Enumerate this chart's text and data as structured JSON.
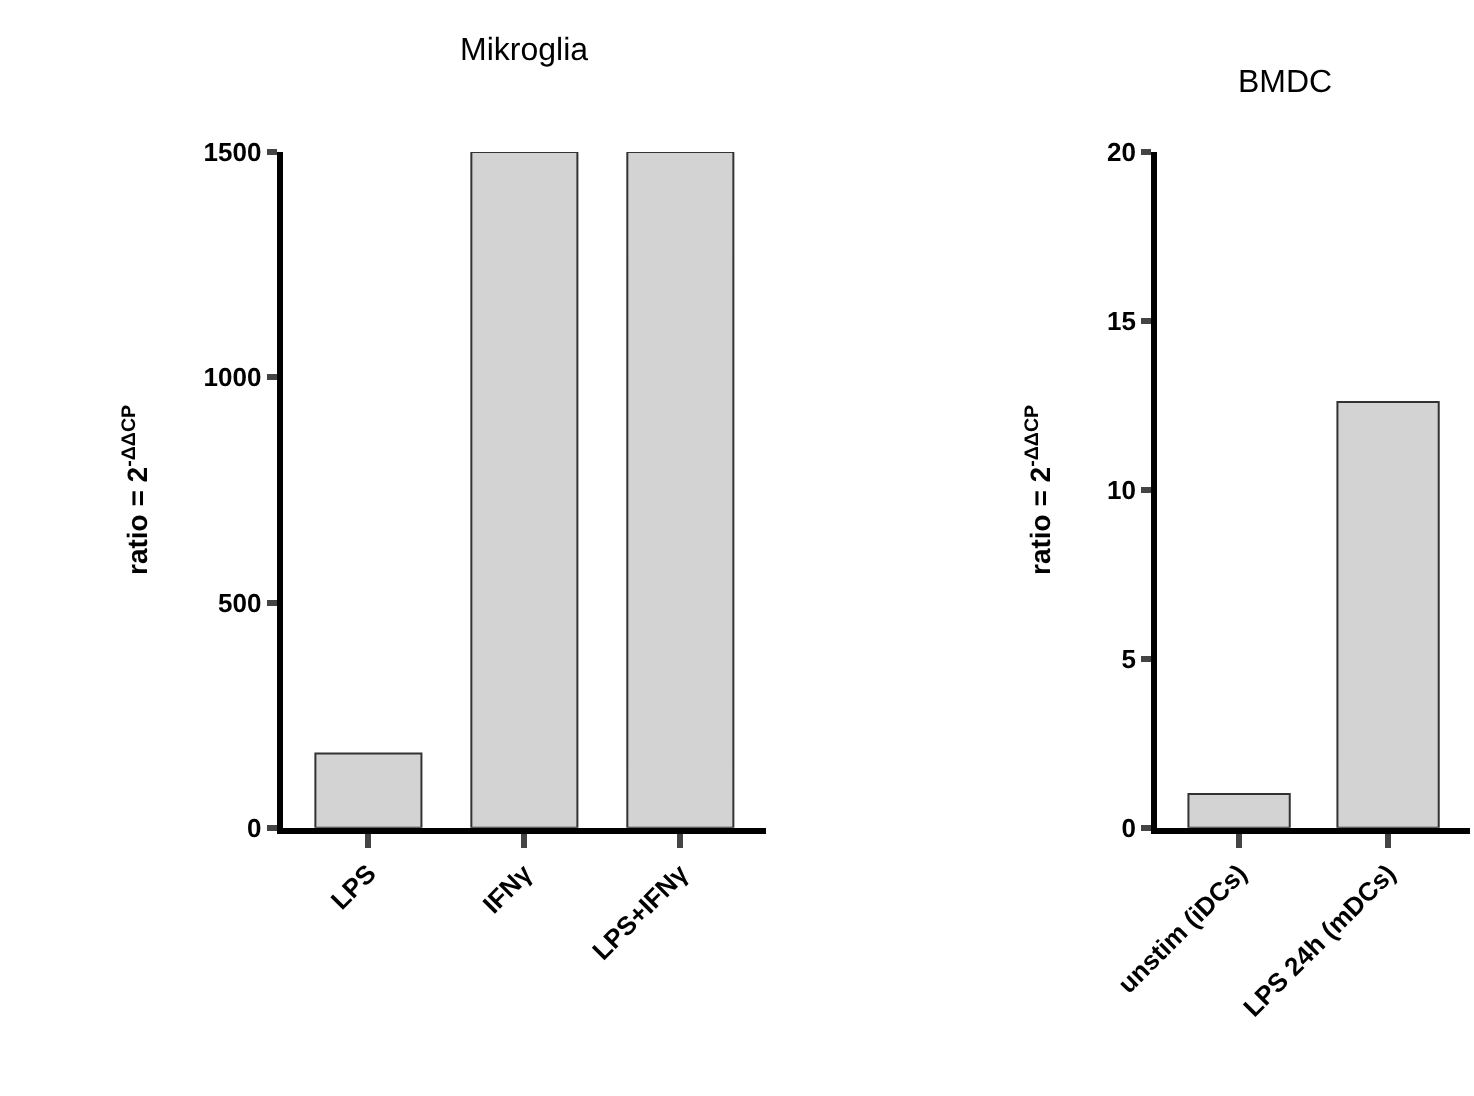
{
  "chart_data": [
    {
      "type": "bar",
      "title": "Mikroglia",
      "ylabel": "ratio = 2$^{-ΔΔCP}$",
      "categories": [
        "LPS",
        "IFNγ",
        "LPS+IFNγ"
      ],
      "values": [
        165,
        1500,
        1500
      ],
      "color": "#d3d3d3",
      "ylim": [
        0,
        1500
      ],
      "yticks": [
        0,
        500,
        1000,
        1500
      ]
    },
    {
      "type": "bar",
      "title": "BMDC",
      "ylabel": "ratio = 2$^{-ΔΔCP}$",
      "categories": [
        "unstim (iDCs)",
        "LPS 24h (mDCs)"
      ],
      "values": [
        1,
        12.6
      ],
      "color": "#d3d3d3",
      "ylim": [
        0,
        20
      ],
      "yticks": [
        0,
        5,
        10,
        15,
        20
      ]
    }
  ]
}
